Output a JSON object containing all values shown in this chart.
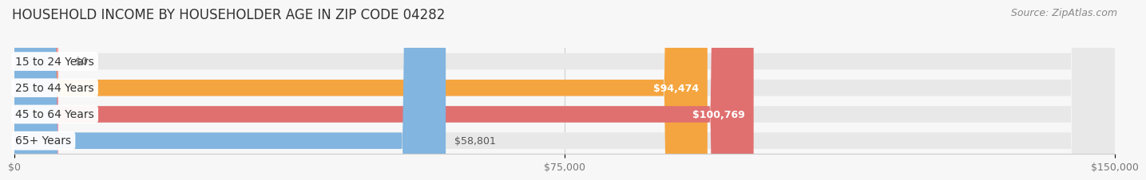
{
  "title": "HOUSEHOLD INCOME BY HOUSEHOLDER AGE IN ZIP CODE 04282",
  "source": "Source: ZipAtlas.com",
  "categories": [
    "15 to 24 Years",
    "25 to 44 Years",
    "45 to 64 Years",
    "65+ Years"
  ],
  "values": [
    0,
    94474,
    100769,
    58801
  ],
  "bar_colors": [
    "#f2a0b5",
    "#f5a540",
    "#e07070",
    "#82b5e0"
  ],
  "bg_bar_color": "#e8e8e8",
  "value_labels": [
    "$0",
    "$94,474",
    "$100,769",
    "$58,801"
  ],
  "xlim_max": 150000,
  "xtick_labels": [
    "$0",
    "$75,000",
    "$150,000"
  ],
  "xtick_vals": [
    0,
    75000,
    150000
  ],
  "background_color": "#f7f7f7",
  "bar_height": 0.62,
  "title_fontsize": 12,
  "source_fontsize": 9,
  "cat_fontsize": 10,
  "val_fontsize": 9
}
